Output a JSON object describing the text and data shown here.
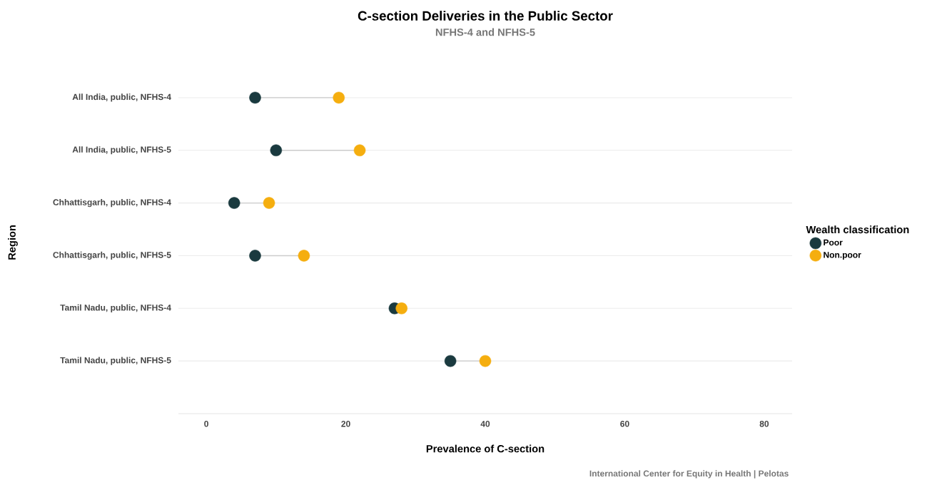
{
  "chart_data": {
    "type": "scatter",
    "orientation": "horizontal",
    "title": "C-section Deliveries in the Public Sector",
    "subtitle": "NFHS-4 and NFHS-5",
    "xlabel": "Prevalence of C-section",
    "ylabel": "Region",
    "legend_title": "Wealth classification",
    "categories": [
      "All India, public, NFHS-4",
      "All India, public, NFHS-5",
      "Chhattisgarh, public, NFHS-4",
      "Chhattisgarh, public, NFHS-5",
      "Tamil Nadu, public, NFHS-4",
      "Tamil Nadu, public, NFHS-5"
    ],
    "series": [
      {
        "name": "Poor",
        "color": "#1a3a3f",
        "values": [
          7,
          10,
          4,
          7,
          27,
          35
        ]
      },
      {
        "name": "Non.poor",
        "color": "#f5ae0f",
        "values": [
          19,
          22,
          9,
          14,
          28,
          40
        ]
      }
    ],
    "xlim": [
      -4,
      84
    ],
    "xticks": [
      0,
      20,
      40,
      60,
      80
    ],
    "grid": "y",
    "legend": "right",
    "marker": "circle",
    "annotations": [
      "International Center for Equity in Health | Pelotas"
    ]
  }
}
